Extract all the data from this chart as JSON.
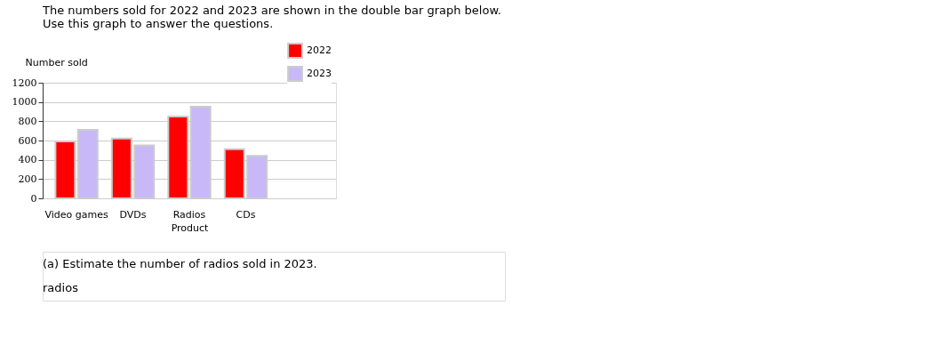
{
  "chart_data": {
    "type": "bar",
    "title": [
      "The numbers sold for 2022 and 2023 are shown in the double bar graph below.",
      "Use this graph to answer the questions."
    ],
    "xlabel": "Product",
    "ylabel": "Number sold",
    "categories": [
      "Video games",
      "DVDs",
      "Radios",
      "CDs"
    ],
    "series": [
      {
        "name": "2022",
        "color": "#ff0000",
        "values": [
          590,
          620,
          850,
          510
        ]
      },
      {
        "name": "2023",
        "color": "#c9b8f7",
        "values": [
          710,
          550,
          950,
          440
        ]
      }
    ],
    "ylim": [
      0,
      1200
    ],
    "yticks": [
      0,
      200,
      400,
      600,
      800,
      1000,
      1200
    ],
    "grid": "y",
    "legend": "top right",
    "annotations": [
      "(a) Estimate the number of radios sold in 2023.",
      "radios"
    ]
  }
}
